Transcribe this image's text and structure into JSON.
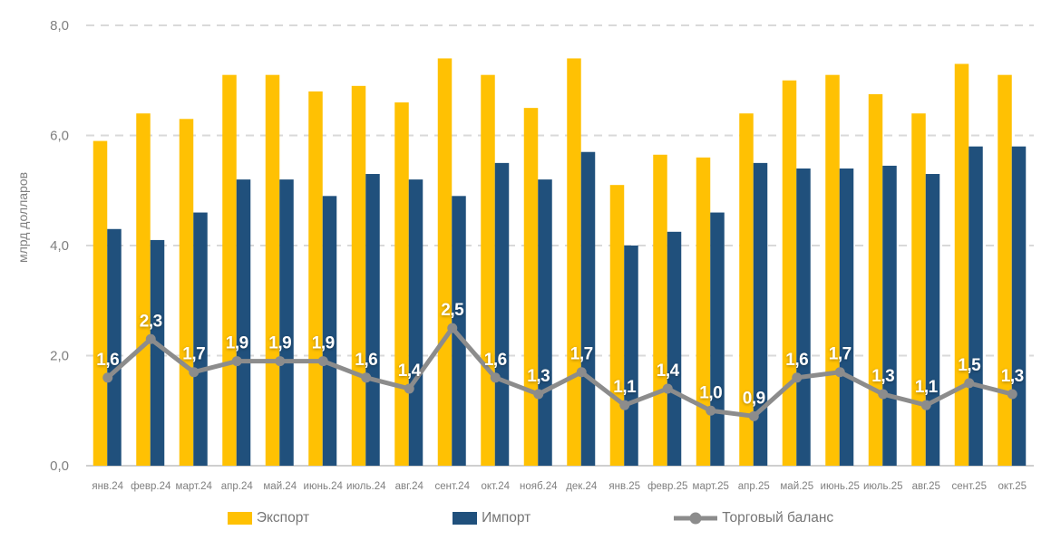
{
  "y_axis": {
    "title": "млрд долларов",
    "min": 0,
    "max": 8,
    "step": 2,
    "tick_labels": [
      "0,0",
      "2,0",
      "4,0",
      "6,0",
      "8,0"
    ]
  },
  "legend": {
    "items": [
      {
        "label": "Экспорт",
        "marker": "bar-swatch",
        "color": "#FFC103"
      },
      {
        "label": "Импорт",
        "marker": "bar-swatch",
        "color": "#20507C"
      },
      {
        "label": "Торговый баланс",
        "marker": "line-with-dot",
        "color": "#8C8C8C"
      }
    ]
  },
  "colors": {
    "export": "#FFC103",
    "import": "#20507C",
    "balance": "#8C8C8C",
    "gridline": "#D9D9D9",
    "axis_line": "#BFBFBF",
    "axis_text": "#7F7F7F",
    "data_label_text": "#FFFFFF",
    "background": "#FFFFFF"
  },
  "chart_data": {
    "type": "bar",
    "subtype": "grouped bars with overlay line",
    "categories": [
      "янв.24",
      "февр.24",
      "март.24",
      "апр.24",
      "май.24",
      "июнь.24",
      "июль.24",
      "авг.24",
      "сент.24",
      "окт.24",
      "нояб.24",
      "дек.24",
      "янв.25",
      "февр.25",
      "март.25",
      "апр.25",
      "май.25",
      "июнь.25",
      "июль.25",
      "авг.25",
      "сент.25",
      "окт.25"
    ],
    "series": [
      {
        "name": "Экспорт",
        "type": "bar",
        "color": "#FFC103",
        "values": [
          5.9,
          6.4,
          6.3,
          7.1,
          7.1,
          6.8,
          6.9,
          6.6,
          7.4,
          7.1,
          6.5,
          7.4,
          5.1,
          5.65,
          5.6,
          6.4,
          7.0,
          7.1,
          6.75,
          6.4,
          7.3,
          7.1
        ]
      },
      {
        "name": "Импорт",
        "type": "bar",
        "color": "#20507C",
        "values": [
          4.3,
          4.1,
          4.6,
          5.2,
          5.2,
          4.9,
          5.3,
          5.2,
          4.9,
          5.5,
          5.2,
          5.7,
          4.0,
          4.25,
          4.6,
          5.5,
          5.4,
          5.4,
          5.45,
          5.3,
          5.8,
          5.8
        ]
      },
      {
        "name": "Торговый баланс",
        "type": "line",
        "color": "#8C8C8C",
        "values": [
          1.6,
          2.3,
          1.7,
          1.9,
          1.9,
          1.9,
          1.6,
          1.4,
          2.5,
          1.6,
          1.3,
          1.7,
          1.1,
          1.4,
          1.0,
          0.9,
          1.6,
          1.7,
          1.3,
          1.1,
          1.5,
          1.3
        ],
        "data_labels": [
          "1,6",
          "2,3",
          "1,7",
          "1,9",
          "1,9",
          "1,9",
          "1,6",
          "1,4",
          "2,5",
          "1,6",
          "1,3",
          "1,7",
          "1,1",
          "1,4",
          "1,0",
          "0,9",
          "1,6",
          "1,7",
          "1,3",
          "1,1",
          "1,5",
          "1,3"
        ]
      }
    ],
    "title": "",
    "xlabel": "",
    "ylabel": "млрд долларов",
    "ylim": [
      0,
      8
    ],
    "grid": true,
    "grid_style": "dashed horizontal",
    "legend_position": "bottom",
    "decimal_separator": ","
  }
}
